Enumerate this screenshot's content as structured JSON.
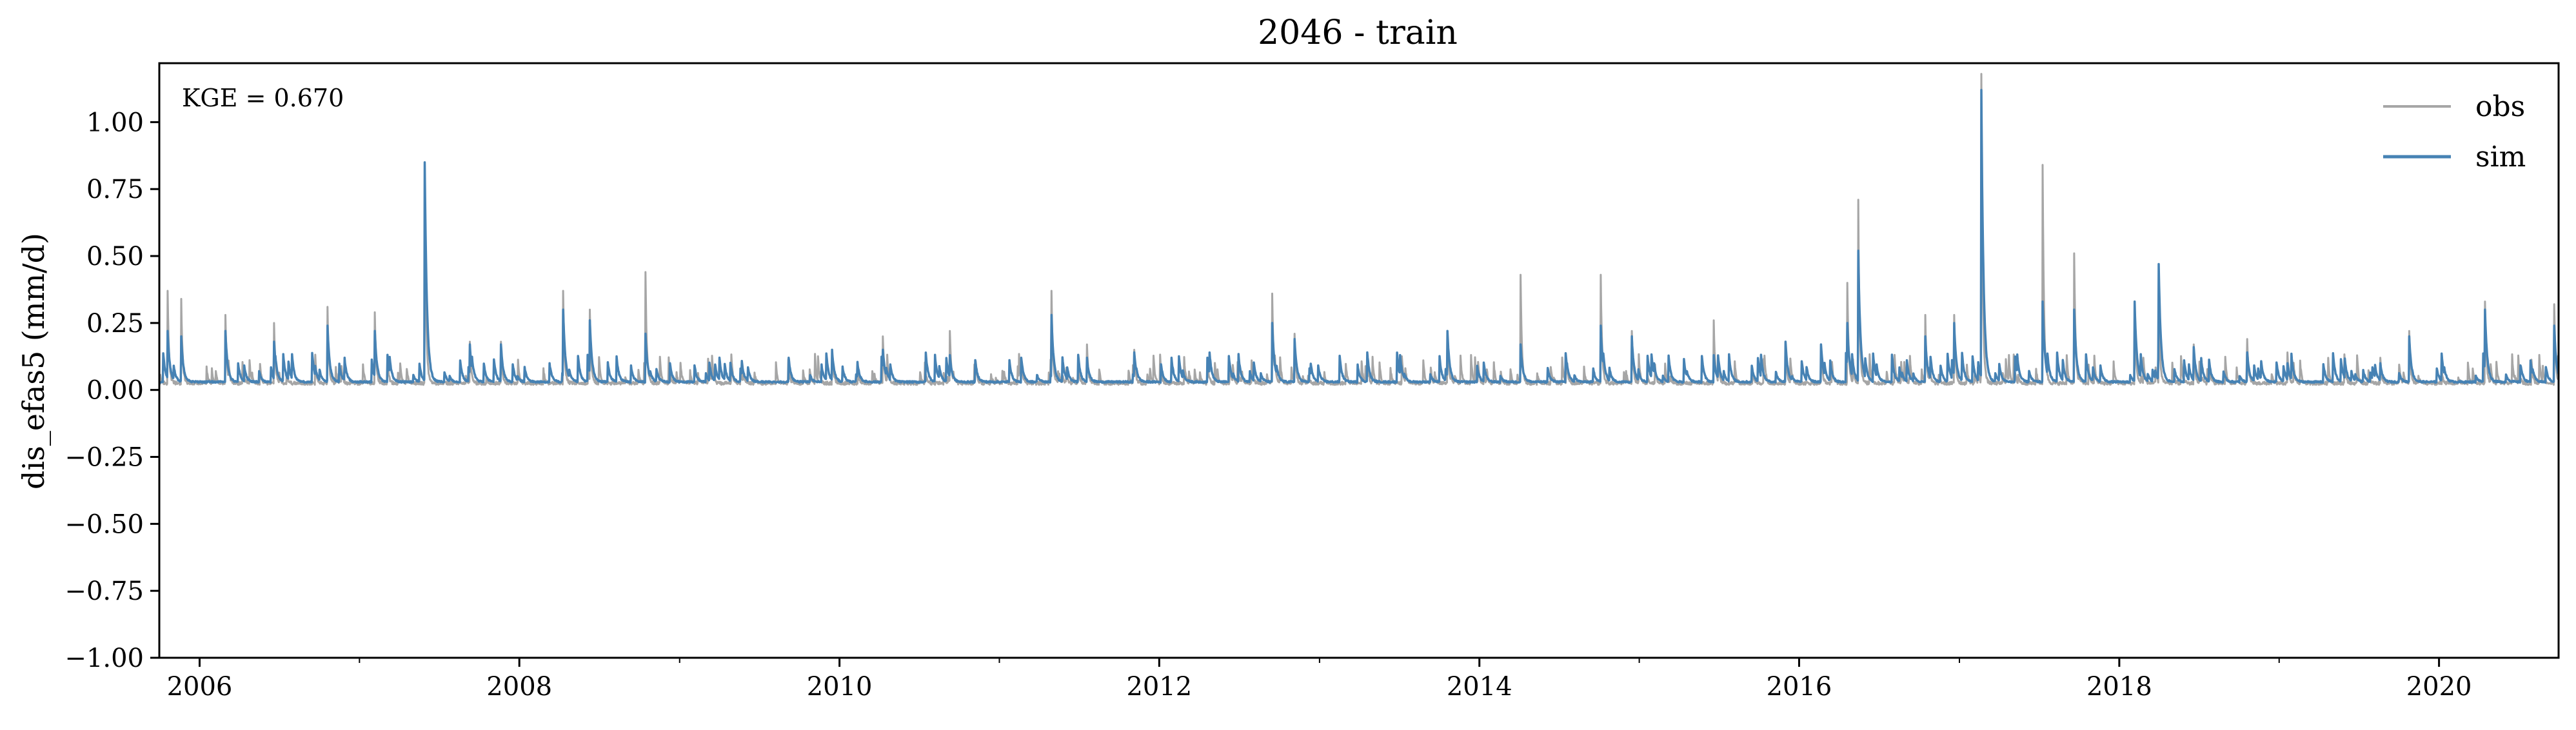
{
  "chart_data": {
    "type": "line",
    "title": "2046 - train",
    "xlabel": "",
    "ylabel": "dis_efas5 (mm/d)",
    "annotation": "KGE = 0.670",
    "xlim": [
      "2005-10-01",
      "2020-09-30"
    ],
    "ylim": [
      -1.0,
      1.22
    ],
    "x_ticks": [
      {
        "date": "2006-01-01",
        "label": "2006"
      },
      {
        "date": "2008-01-01",
        "label": "2008"
      },
      {
        "date": "2010-01-01",
        "label": "2010"
      },
      {
        "date": "2012-01-01",
        "label": "2012"
      },
      {
        "date": "2014-01-01",
        "label": "2014"
      },
      {
        "date": "2016-01-01",
        "label": "2016"
      },
      {
        "date": "2018-01-01",
        "label": "2018"
      },
      {
        "date": "2020-01-01",
        "label": "2020"
      }
    ],
    "y_ticks": [
      {
        "value": 1.0,
        "label": "1.00"
      },
      {
        "value": 0.75,
        "label": "0.75"
      },
      {
        "value": 0.5,
        "label": "0.50"
      },
      {
        "value": 0.25,
        "label": "0.25"
      },
      {
        "value": 0.0,
        "label": "0.00"
      },
      {
        "value": -0.25,
        "label": "−0.25"
      },
      {
        "value": -0.5,
        "label": "−0.50"
      },
      {
        "value": -0.75,
        "label": "−0.75"
      },
      {
        "value": -1.0,
        "label": "−1.00"
      }
    ],
    "baseline": {
      "obs": 0.025,
      "sim": 0.03
    },
    "legend": {
      "position": "upper right"
    },
    "grid": false,
    "series": [
      {
        "name": "obs",
        "color": "#a6a6a6",
        "peaks": [
          [
            "2005-10-20",
            0.37
          ],
          [
            "2005-11-20",
            0.34
          ],
          [
            "2006-03-01",
            0.28
          ],
          [
            "2006-06-20",
            0.25
          ],
          [
            "2006-10-20",
            0.31
          ],
          [
            "2007-02-05",
            0.29
          ],
          [
            "2007-05-30",
            0.85
          ],
          [
            "2007-09-10",
            0.18
          ],
          [
            "2007-11-20",
            0.18
          ],
          [
            "2008-04-10",
            0.37
          ],
          [
            "2008-06-10",
            0.3
          ],
          [
            "2008-10-15",
            0.44
          ],
          [
            "2009-03-10",
            0.1
          ],
          [
            "2009-05-20",
            0.08
          ],
          [
            "2009-12-15",
            0.15
          ],
          [
            "2010-04-10",
            0.2
          ],
          [
            "2010-09-10",
            0.22
          ],
          [
            "2011-02-20",
            0.12
          ],
          [
            "2011-04-30",
            0.37
          ],
          [
            "2011-07-20",
            0.17
          ],
          [
            "2011-11-05",
            0.15
          ],
          [
            "2012-04-20",
            0.12
          ],
          [
            "2012-09-15",
            0.36
          ],
          [
            "2012-11-05",
            0.21
          ],
          [
            "2013-04-20",
            0.12
          ],
          [
            "2013-10-20",
            0.22
          ],
          [
            "2014-04-05",
            0.43
          ],
          [
            "2014-07-20",
            0.1
          ],
          [
            "2014-10-05",
            0.43
          ],
          [
            "2014-12-15",
            0.22
          ],
          [
            "2015-06-20",
            0.26
          ],
          [
            "2015-12-01",
            0.18
          ],
          [
            "2016-02-20",
            0.17
          ],
          [
            "2016-04-20",
            0.4
          ],
          [
            "2016-05-15",
            0.71
          ],
          [
            "2016-10-15",
            0.28
          ],
          [
            "2016-12-20",
            0.28
          ],
          [
            "2017-02-20",
            1.18
          ],
          [
            "2017-07-10",
            0.84
          ],
          [
            "2017-09-20",
            0.51
          ],
          [
            "2018-02-05",
            0.32
          ],
          [
            "2018-04-01",
            0.33
          ],
          [
            "2018-06-20",
            0.17
          ],
          [
            "2018-10-20",
            0.19
          ],
          [
            "2019-01-20",
            0.14
          ],
          [
            "2019-08-20",
            0.12
          ],
          [
            "2019-10-25",
            0.22
          ],
          [
            "2020-04-15",
            0.33
          ],
          [
            "2020-09-20",
            0.32
          ]
        ]
      },
      {
        "name": "sim",
        "color": "#4682b4",
        "peaks": [
          [
            "2005-10-20",
            0.22
          ],
          [
            "2005-11-20",
            0.2
          ],
          [
            "2006-03-01",
            0.22
          ],
          [
            "2006-06-20",
            0.18
          ],
          [
            "2006-10-20",
            0.24
          ],
          [
            "2007-02-05",
            0.22
          ],
          [
            "2007-05-30",
            0.85
          ],
          [
            "2007-09-10",
            0.17
          ],
          [
            "2007-11-20",
            0.17
          ],
          [
            "2008-04-10",
            0.3
          ],
          [
            "2008-06-10",
            0.26
          ],
          [
            "2008-10-15",
            0.21
          ],
          [
            "2009-03-10",
            0.09
          ],
          [
            "2009-05-20",
            0.08
          ],
          [
            "2009-12-15",
            0.15
          ],
          [
            "2010-04-10",
            0.15
          ],
          [
            "2010-09-10",
            0.13
          ],
          [
            "2011-02-20",
            0.12
          ],
          [
            "2011-04-30",
            0.28
          ],
          [
            "2011-07-20",
            0.12
          ],
          [
            "2011-11-05",
            0.14
          ],
          [
            "2012-04-20",
            0.12
          ],
          [
            "2012-09-15",
            0.25
          ],
          [
            "2012-11-05",
            0.19
          ],
          [
            "2013-04-20",
            0.14
          ],
          [
            "2013-10-20",
            0.22
          ],
          [
            "2014-04-05",
            0.17
          ],
          [
            "2014-07-20",
            0.1
          ],
          [
            "2014-10-05",
            0.24
          ],
          [
            "2014-12-15",
            0.2
          ],
          [
            "2015-06-20",
            0.13
          ],
          [
            "2015-12-01",
            0.18
          ],
          [
            "2016-02-20",
            0.17
          ],
          [
            "2016-04-20",
            0.25
          ],
          [
            "2016-05-15",
            0.52
          ],
          [
            "2016-10-15",
            0.2
          ],
          [
            "2016-12-20",
            0.25
          ],
          [
            "2017-02-20",
            1.12
          ],
          [
            "2017-07-10",
            0.33
          ],
          [
            "2017-09-20",
            0.3
          ],
          [
            "2018-02-05",
            0.33
          ],
          [
            "2018-04-01",
            0.47
          ],
          [
            "2018-06-20",
            0.16
          ],
          [
            "2018-10-20",
            0.14
          ],
          [
            "2019-01-20",
            0.1
          ],
          [
            "2019-08-20",
            0.1
          ],
          [
            "2019-10-25",
            0.2
          ],
          [
            "2020-04-15",
            0.3
          ],
          [
            "2020-09-20",
            0.24
          ]
        ]
      }
    ]
  }
}
